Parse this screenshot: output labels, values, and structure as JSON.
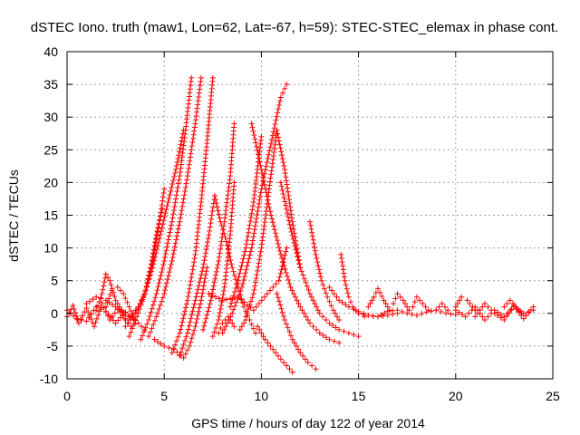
{
  "chart_data": {
    "type": "scatter",
    "title": "dSTEC Iono. truth (maw1, Lon=62, Lat=-67, h=59): STEC-STEC_elemax in phase cont.",
    "xlabel": "GPS time / hours of day 122 of year 2014",
    "ylabel": "dSTEC  / TECUs",
    "xlim": [
      0,
      25
    ],
    "ylim": [
      -10,
      40
    ],
    "xticks": [
      0,
      5,
      10,
      15,
      20,
      25
    ],
    "yticks": [
      -10,
      -5,
      0,
      5,
      10,
      15,
      20,
      25,
      30,
      35,
      40
    ],
    "grid": true,
    "marker": "plus",
    "color": "#ff0000",
    "series": [
      {
        "x": [
          0.0,
          0.3,
          0.6,
          1.0,
          1.4,
          1.8,
          2.2,
          2.6,
          3.0
        ],
        "y": [
          -0.5,
          1.2,
          -1.5,
          0.8,
          -2.0,
          1.5,
          -1.0,
          0.6,
          -0.8
        ]
      },
      {
        "x": [
          0.0,
          0.5,
          1.0,
          1.5,
          2.0,
          2.5,
          3.0
        ],
        "y": [
          0.5,
          -0.8,
          -1.2,
          1.0,
          0.3,
          -1.5,
          0.2
        ]
      },
      {
        "x": [
          1.5,
          1.8,
          2.0,
          2.2,
          2.5,
          2.8,
          3.0,
          3.3
        ],
        "y": [
          0.5,
          3.0,
          6.0,
          5.0,
          2.0,
          0.5,
          -1.0,
          -2.0
        ]
      },
      {
        "x": [
          2.0,
          2.3,
          2.6,
          2.9,
          3.2,
          3.5
        ],
        "y": [
          1.0,
          3.5,
          4.0,
          3.0,
          1.0,
          -1.5
        ]
      },
      {
        "x": [
          1.0,
          1.5,
          2.0,
          2.5,
          3.0,
          3.5,
          4.0
        ],
        "y": [
          1.5,
          2.5,
          2.0,
          1.0,
          0.0,
          -1.0,
          -2.5
        ]
      },
      {
        "x": [
          3.0,
          3.4,
          3.8,
          4.1,
          4.4,
          4.7,
          5.0
        ],
        "y": [
          -1.0,
          0.0,
          1.5,
          4.0,
          8.0,
          13.0,
          19.0
        ]
      },
      {
        "x": [
          3.0,
          3.5,
          4.0,
          4.4,
          4.8,
          5.2,
          5.6,
          6.0
        ],
        "y": [
          -2.0,
          0.0,
          3.0,
          7.0,
          12.0,
          17.0,
          22.0,
          28.0
        ]
      },
      {
        "x": [
          3.2,
          3.6,
          4.0,
          4.3,
          4.6,
          4.9
        ],
        "y": [
          -3.5,
          -0.5,
          3.0,
          7.0,
          12.0,
          16.0
        ]
      },
      {
        "x": [
          3.8,
          4.2,
          4.6,
          5.0,
          5.4,
          5.8,
          6.1,
          6.4
        ],
        "y": [
          -4.0,
          -1.0,
          3.0,
          8.0,
          14.0,
          21.0,
          28.0,
          36.0
        ]
      },
      {
        "x": [
          4.2,
          4.6,
          5.0,
          5.4,
          5.8,
          6.2,
          6.6,
          6.9
        ],
        "y": [
          -3.5,
          -0.5,
          3.0,
          8.0,
          14.0,
          21.0,
          29.0,
          36.0
        ]
      },
      {
        "x": [
          5.4,
          5.8,
          6.2,
          6.6,
          6.9,
          7.2,
          7.5
        ],
        "y": [
          -6.0,
          -3.0,
          2.0,
          9.0,
          17.0,
          26.0,
          36.0
        ]
      },
      {
        "x": [
          4.5,
          5.0,
          5.5,
          6.0,
          6.3,
          6.6,
          6.9,
          7.2
        ],
        "y": [
          -4.0,
          -5.0,
          -5.5,
          -6.8,
          -5.0,
          -2.0,
          2.0,
          7.0
        ]
      },
      {
        "x": [
          5.8,
          6.2,
          6.6,
          7.0,
          7.3,
          7.6
        ],
        "y": [
          -6.5,
          -3.0,
          2.0,
          7.0,
          12.0,
          18.0
        ]
      },
      {
        "x": [
          7.5,
          7.8,
          8.1,
          8.4,
          8.6
        ],
        "y": [
          -3.5,
          -1.0,
          4.0,
          12.0,
          20.0
        ]
      },
      {
        "x": [
          7.0,
          7.4,
          7.8,
          8.1,
          8.4,
          8.6
        ],
        "y": [
          -2.5,
          2.0,
          8.0,
          14.0,
          21.0,
          29.0
        ]
      },
      {
        "x": [
          7.6,
          7.9,
          8.2,
          8.5,
          8.8,
          9.1,
          9.4,
          9.7
        ],
        "y": [
          18.0,
          14.0,
          11.0,
          7.0,
          4.0,
          1.0,
          -1.0,
          -3.0
        ]
      },
      {
        "x": [
          7.8,
          8.0,
          8.3,
          8.6,
          8.9,
          9.2
        ],
        "y": [
          -3.0,
          -1.5,
          -0.5,
          -2.0,
          -2.5,
          -1.0
        ]
      },
      {
        "x": [
          8.0,
          8.5,
          9.0,
          9.5,
          10.0,
          10.5,
          11.0,
          11.3
        ],
        "y": [
          -3.0,
          0.0,
          4.0,
          10.0,
          19.0,
          26.0,
          33.0,
          35.0
        ]
      },
      {
        "x": [
          8.4,
          8.8,
          9.2,
          9.6,
          10.0
        ],
        "y": [
          1.0,
          5.0,
          10.0,
          17.0,
          27.0
        ]
      },
      {
        "x": [
          7.3,
          8.0,
          8.8,
          9.6,
          10.3,
          10.9,
          11.3
        ],
        "y": [
          3.0,
          2.0,
          2.5,
          0.5,
          3.0,
          5.0,
          10.0
        ]
      },
      {
        "x": [
          9.2,
          9.6,
          10.0,
          10.4,
          10.8,
          11.2,
          11.6,
          12.0
        ],
        "y": [
          -0.5,
          3.0,
          10.0,
          19.0,
          28.0,
          22.0,
          14.0,
          7.0
        ]
      },
      {
        "x": [
          9.5,
          10.0,
          10.5,
          11.0,
          11.5,
          12.0,
          12.5,
          13.0,
          13.5,
          14.0
        ],
        "y": [
          29.0,
          22.0,
          15.0,
          9.0,
          4.0,
          1.0,
          -1.5,
          -3.0,
          -4.0,
          -4.5
        ]
      },
      {
        "x": [
          9.8,
          10.2,
          10.6,
          11.0,
          11.3,
          11.6
        ],
        "y": [
          -2.0,
          -4.0,
          -5.5,
          -7.0,
          -8.0,
          -9.0
        ]
      },
      {
        "x": [
          10.8,
          11.2,
          11.6,
          12.0,
          12.4,
          12.8
        ],
        "y": [
          3.0,
          -1.0,
          -4.0,
          -6.0,
          -7.5,
          -8.5
        ]
      },
      {
        "x": [
          11.0,
          11.5,
          12.0,
          12.5,
          13.0,
          13.5,
          14.0,
          14.5,
          15.0
        ],
        "y": [
          20.0,
          13.0,
          7.0,
          3.0,
          0.0,
          -1.5,
          -2.5,
          -3.0,
          -3.5
        ]
      },
      {
        "x": [
          12.5,
          12.8,
          13.1,
          13.4,
          13.7,
          14.0
        ],
        "y": [
          14.0,
          9.0,
          5.0,
          2.5,
          0.5,
          -1.0
        ]
      },
      {
        "x": [
          14.1,
          14.3,
          14.5,
          14.7,
          15.0,
          15.3
        ],
        "y": [
          9.0,
          5.0,
          2.5,
          1.0,
          0.0,
          -0.5
        ]
      },
      {
        "x": [
          13.5,
          14.0,
          14.5,
          15.0,
          15.5,
          16.0,
          16.5,
          17.0
        ],
        "y": [
          4.0,
          2.0,
          1.0,
          0.3,
          -0.3,
          -0.5,
          -0.3,
          0.0
        ]
      },
      {
        "x": [
          15.0,
          15.5,
          16.0,
          16.5,
          17.0,
          17.5,
          18.0,
          18.5,
          19.0,
          19.5,
          20.0
        ],
        "y": [
          0.0,
          -0.3,
          -0.5,
          0.3,
          0.5,
          0.0,
          -0.3,
          0.2,
          0.5,
          0.0,
          -0.2
        ]
      },
      {
        "x": [
          15.5,
          15.8,
          16.0,
          16.3,
          16.6
        ],
        "y": [
          1.0,
          2.5,
          3.8,
          2.0,
          0.5
        ]
      },
      {
        "x": [
          16.8,
          17.0,
          17.3,
          17.6
        ],
        "y": [
          1.5,
          3.0,
          2.0,
          0.5
        ]
      },
      {
        "x": [
          17.8,
          18.0,
          18.3,
          18.6
        ],
        "y": [
          1.0,
          2.5,
          1.5,
          0.5
        ]
      },
      {
        "x": [
          19.0,
          19.3,
          19.6
        ],
        "y": [
          0.5,
          1.5,
          0.5
        ]
      },
      {
        "x": [
          20.0,
          20.5,
          21.0,
          21.5,
          22.0,
          22.5,
          23.0,
          23.5,
          24.0
        ],
        "y": [
          0.5,
          -0.5,
          1.0,
          -1.0,
          0.5,
          -0.5,
          1.0,
          0.0,
          0.5
        ]
      },
      {
        "x": [
          20.0,
          20.3,
          20.6,
          21.0
        ],
        "y": [
          1.0,
          2.5,
          2.0,
          0.5
        ]
      },
      {
        "x": [
          21.0,
          21.5,
          22.0,
          22.5,
          23.0,
          23.5,
          24.0
        ],
        "y": [
          -0.5,
          1.5,
          0.0,
          -1.0,
          1.2,
          -0.8,
          1.0
        ]
      },
      {
        "x": [
          22.5,
          22.8,
          23.1,
          23.4
        ],
        "y": [
          1.0,
          2.0,
          1.0,
          0.0
        ]
      }
    ]
  }
}
